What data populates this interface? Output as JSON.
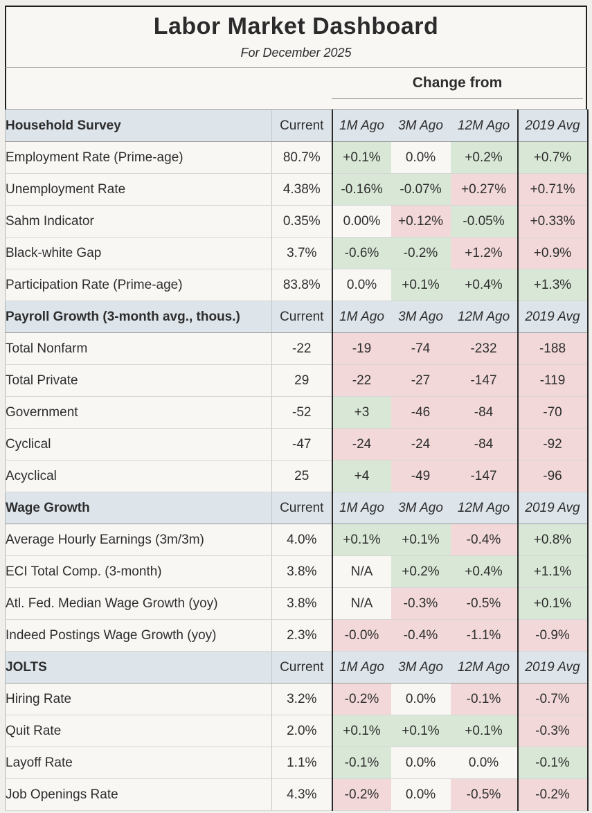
{
  "title": "Labor Market Dashboard",
  "subtitle": "For December 2025",
  "change_from_label": "Change from",
  "colors": {
    "green": "#d9e8d6",
    "red": "#f2d8d8",
    "neutral": "#f8f7f4",
    "section_header_bg": "#dde4ea"
  },
  "chart_data": {
    "type": "table",
    "columns": [
      "Current",
      "1M Ago",
      "3M Ago",
      "12M Ago",
      "2019 Avg"
    ],
    "sections": [
      {
        "label": "Household Survey",
        "rows": [
          {
            "label": "Employment Rate (Prime-age)",
            "indent": 1,
            "current": "80.7%",
            "changes": [
              {
                "value": "+0.1%",
                "tone": "green"
              },
              {
                "value": "0.0%",
                "tone": "neutral"
              },
              {
                "value": "+0.2%",
                "tone": "green"
              },
              {
                "value": "+0.7%",
                "tone": "green"
              }
            ]
          },
          {
            "label": "Unemployment Rate",
            "indent": 1,
            "current": "4.38%",
            "changes": [
              {
                "value": "-0.16%",
                "tone": "green"
              },
              {
                "value": "-0.07%",
                "tone": "green"
              },
              {
                "value": "+0.27%",
                "tone": "red"
              },
              {
                "value": "+0.71%",
                "tone": "red"
              }
            ]
          },
          {
            "label": "Sahm Indicator",
            "indent": 2,
            "current": "0.35%",
            "changes": [
              {
                "value": "0.00%",
                "tone": "neutral"
              },
              {
                "value": "+0.12%",
                "tone": "red"
              },
              {
                "value": "-0.05%",
                "tone": "green"
              },
              {
                "value": "+0.33%",
                "tone": "red"
              }
            ]
          },
          {
            "label": "Black-white Gap",
            "indent": 2,
            "current": "3.7%",
            "changes": [
              {
                "value": "-0.6%",
                "tone": "green"
              },
              {
                "value": "-0.2%",
                "tone": "green"
              },
              {
                "value": "+1.2%",
                "tone": "red"
              },
              {
                "value": "+0.9%",
                "tone": "red"
              }
            ]
          },
          {
            "label": "Participation Rate (Prime-age)",
            "indent": 1,
            "current": "83.8%",
            "changes": [
              {
                "value": "0.0%",
                "tone": "neutral"
              },
              {
                "value": "+0.1%",
                "tone": "green"
              },
              {
                "value": "+0.4%",
                "tone": "green"
              },
              {
                "value": "+1.3%",
                "tone": "green"
              }
            ]
          }
        ]
      },
      {
        "label": "Payroll Growth (3-month avg., thous.)",
        "rows": [
          {
            "label": "Total Nonfarm",
            "indent": 1,
            "current": "-22",
            "changes": [
              {
                "value": "-19",
                "tone": "red"
              },
              {
                "value": "-74",
                "tone": "red"
              },
              {
                "value": "-232",
                "tone": "red"
              },
              {
                "value": "-188",
                "tone": "red"
              }
            ]
          },
          {
            "label": "Total Private",
            "indent": 2,
            "current": "29",
            "changes": [
              {
                "value": "-22",
                "tone": "red"
              },
              {
                "value": "-27",
                "tone": "red"
              },
              {
                "value": "-147",
                "tone": "red"
              },
              {
                "value": "-119",
                "tone": "red"
              }
            ]
          },
          {
            "label": "Government",
            "indent": 2,
            "current": "-52",
            "changes": [
              {
                "value": "+3",
                "tone": "green"
              },
              {
                "value": "-46",
                "tone": "red"
              },
              {
                "value": "-84",
                "tone": "red"
              },
              {
                "value": "-70",
                "tone": "red"
              }
            ]
          },
          {
            "label": "Cyclical",
            "indent": 2,
            "current": "-47",
            "changes": [
              {
                "value": "-24",
                "tone": "red"
              },
              {
                "value": "-24",
                "tone": "red"
              },
              {
                "value": "-84",
                "tone": "red"
              },
              {
                "value": "-92",
                "tone": "red"
              }
            ]
          },
          {
            "label": "Acyclical",
            "indent": 2,
            "current": "25",
            "changes": [
              {
                "value": "+4",
                "tone": "green"
              },
              {
                "value": "-49",
                "tone": "red"
              },
              {
                "value": "-147",
                "tone": "red"
              },
              {
                "value": "-96",
                "tone": "red"
              }
            ]
          }
        ]
      },
      {
        "label": "Wage Growth",
        "rows": [
          {
            "label": "Average Hourly Earnings (3m/3m)",
            "indent": 1,
            "current": "4.0%",
            "changes": [
              {
                "value": "+0.1%",
                "tone": "green"
              },
              {
                "value": "+0.1%",
                "tone": "green"
              },
              {
                "value": "-0.4%",
                "tone": "red"
              },
              {
                "value": "+0.8%",
                "tone": "green"
              }
            ]
          },
          {
            "label": "ECI Total Comp. (3-month)",
            "indent": 1,
            "current": "3.8%",
            "changes": [
              {
                "value": "N/A",
                "tone": "neutral"
              },
              {
                "value": "+0.2%",
                "tone": "green"
              },
              {
                "value": "+0.4%",
                "tone": "green"
              },
              {
                "value": "+1.1%",
                "tone": "green"
              }
            ]
          },
          {
            "label": "Atl. Fed. Median Wage Growth (yoy)",
            "indent": 1,
            "current": "3.8%",
            "changes": [
              {
                "value": "N/A",
                "tone": "neutral"
              },
              {
                "value": "-0.3%",
                "tone": "red"
              },
              {
                "value": "-0.5%",
                "tone": "red"
              },
              {
                "value": "+0.1%",
                "tone": "green"
              }
            ]
          },
          {
            "label": "Indeed Postings Wage Growth (yoy)",
            "indent": 1,
            "current": "2.3%",
            "changes": [
              {
                "value": "-0.0%",
                "tone": "red"
              },
              {
                "value": "-0.4%",
                "tone": "red"
              },
              {
                "value": "-1.1%",
                "tone": "red"
              },
              {
                "value": "-0.9%",
                "tone": "red"
              }
            ]
          }
        ]
      },
      {
        "label": "JOLTS",
        "rows": [
          {
            "label": "Hiring Rate",
            "indent": 1,
            "current": "3.2%",
            "changes": [
              {
                "value": "-0.2%",
                "tone": "red"
              },
              {
                "value": "0.0%",
                "tone": "neutral"
              },
              {
                "value": "-0.1%",
                "tone": "red"
              },
              {
                "value": "-0.7%",
                "tone": "red"
              }
            ]
          },
          {
            "label": "Quit Rate",
            "indent": 1,
            "current": "2.0%",
            "changes": [
              {
                "value": "+0.1%",
                "tone": "green"
              },
              {
                "value": "+0.1%",
                "tone": "green"
              },
              {
                "value": "+0.1%",
                "tone": "green"
              },
              {
                "value": "-0.3%",
                "tone": "red"
              }
            ]
          },
          {
            "label": "Layoff Rate",
            "indent": 1,
            "current": "1.1%",
            "changes": [
              {
                "value": "-0.1%",
                "tone": "green"
              },
              {
                "value": "0.0%",
                "tone": "neutral"
              },
              {
                "value": "0.0%",
                "tone": "neutral"
              },
              {
                "value": "-0.1%",
                "tone": "green"
              }
            ]
          },
          {
            "label": "Job Openings Rate",
            "indent": 1,
            "current": "4.3%",
            "changes": [
              {
                "value": "-0.2%",
                "tone": "red"
              },
              {
                "value": "0.0%",
                "tone": "neutral"
              },
              {
                "value": "-0.5%",
                "tone": "red"
              },
              {
                "value": "-0.2%",
                "tone": "red"
              }
            ]
          }
        ]
      }
    ]
  }
}
